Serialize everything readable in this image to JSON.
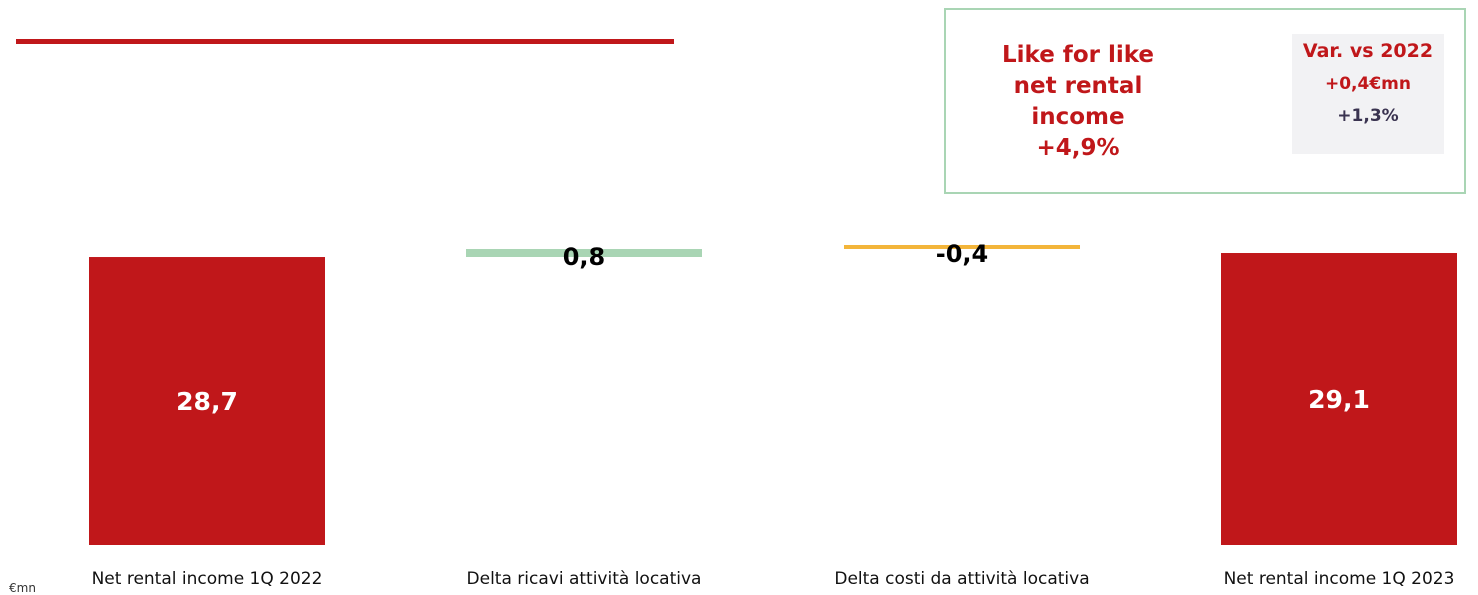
{
  "kpi": {
    "main_lines": [
      "Like for like",
      "net rental",
      "income",
      "+4,9%"
    ],
    "var_title": "Var. vs 2022",
    "var_abs": "+0,4€mn",
    "var_pct": "+1,3%"
  },
  "colors": {
    "brand_red": "#c0171a",
    "increase_green": "#a9d5b4",
    "decrease_orange": "#f3b53a",
    "box_grey": "#f2f2f4",
    "pct_text": "#3a3350"
  },
  "chart_data": {
    "type": "bar",
    "subtype": "waterfall",
    "unit_label": "€mn",
    "categories": [
      "Net rental income 1Q 2022",
      "Delta ricavi attività locativa",
      "Delta costi da attività locativa",
      "Net rental income 1Q 2023"
    ],
    "values": [
      28.7,
      0.8,
      -0.4,
      29.1
    ],
    "value_labels": [
      "28,7",
      "0,8",
      "-0,4",
      "29,1"
    ],
    "kinds": [
      "total",
      "delta",
      "delta",
      "total"
    ],
    "ylim": [
      0,
      29.5
    ],
    "grid": false,
    "legend": "none"
  }
}
